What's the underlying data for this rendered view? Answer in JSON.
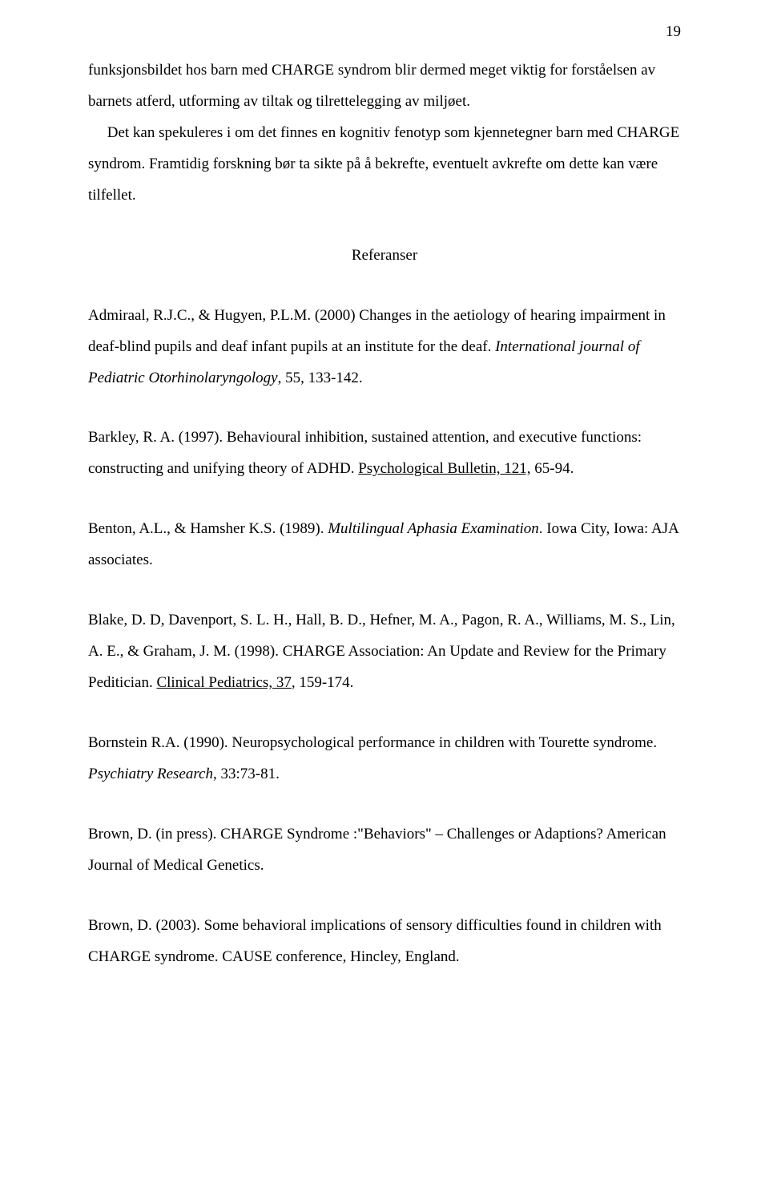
{
  "page_number": "19",
  "intro_paragraph": {
    "line1": "funksjonsbildet hos barn med CHARGE syndrom blir dermed meget viktig for forståelsen av barnets atferd, utforming av tiltak og tilrettelegging av miljøet.",
    "line2_indent": "     Det kan spekuleres i om det finnes en kognitiv fenotyp som kjennetegner barn med CHARGE syndrom. Framtidig forskning bør ta sikte på å bekrefte, eventuelt avkrefte om dette kan være tilfellet."
  },
  "heading": "Referanser",
  "refs": {
    "r1": {
      "pre": "Admiraal, R.J.C., & Hugyen, P.L.M. (2000) Changes in the aetiology of hearing impairment in deaf-blind pupils and deaf infant pupils at an institute for the deaf. ",
      "italic": "International journal of Pediatric Otorhinolaryngology",
      "post": ", 55, 133-142."
    },
    "r2": {
      "pre": "Barkley, R. A. (1997). Behavioural inhibition, sustained attention, and executive functions: constructing and unifying theory of ADHD. ",
      "under": "Psychological Bulletin, 121,",
      "post": " 65-94."
    },
    "r3": {
      "pre": "Benton, A.L., & Hamsher K.S. (1989). ",
      "italic": "Multilingual Aphasia Examination",
      "post": ". Iowa City, Iowa: AJA  associates."
    },
    "r4": {
      "pre": "Blake, D. D, Davenport, S. L. H., Hall, B. D., Hefner, M. A., Pagon, R. A., Williams, M. S., Lin, A. E., & Graham, J. M. (1998). CHARGE Association: An Update and Review for the Primary Peditician. ",
      "under": "Clinical Pediatrics, 37",
      "post": ", 159-174."
    },
    "r5": {
      "pre": "Bornstein R.A. (1990). Neuropsychological performance in children with Tourette syndrome. ",
      "italic": "Psychiatry Research",
      "post": ", 33:73-81."
    },
    "r6": {
      "pre": "Brown, D. (in press). CHARGE Syndrome :\"Behaviors\" – Challenges or Adaptions? American Journal of Medical Genetics."
    },
    "r7": {
      "pre": "Brown, D. (2003). Some behavioral implications of sensory difficulties found in children with CHARGE syndrome. CAUSE conference, Hincley, England."
    }
  }
}
